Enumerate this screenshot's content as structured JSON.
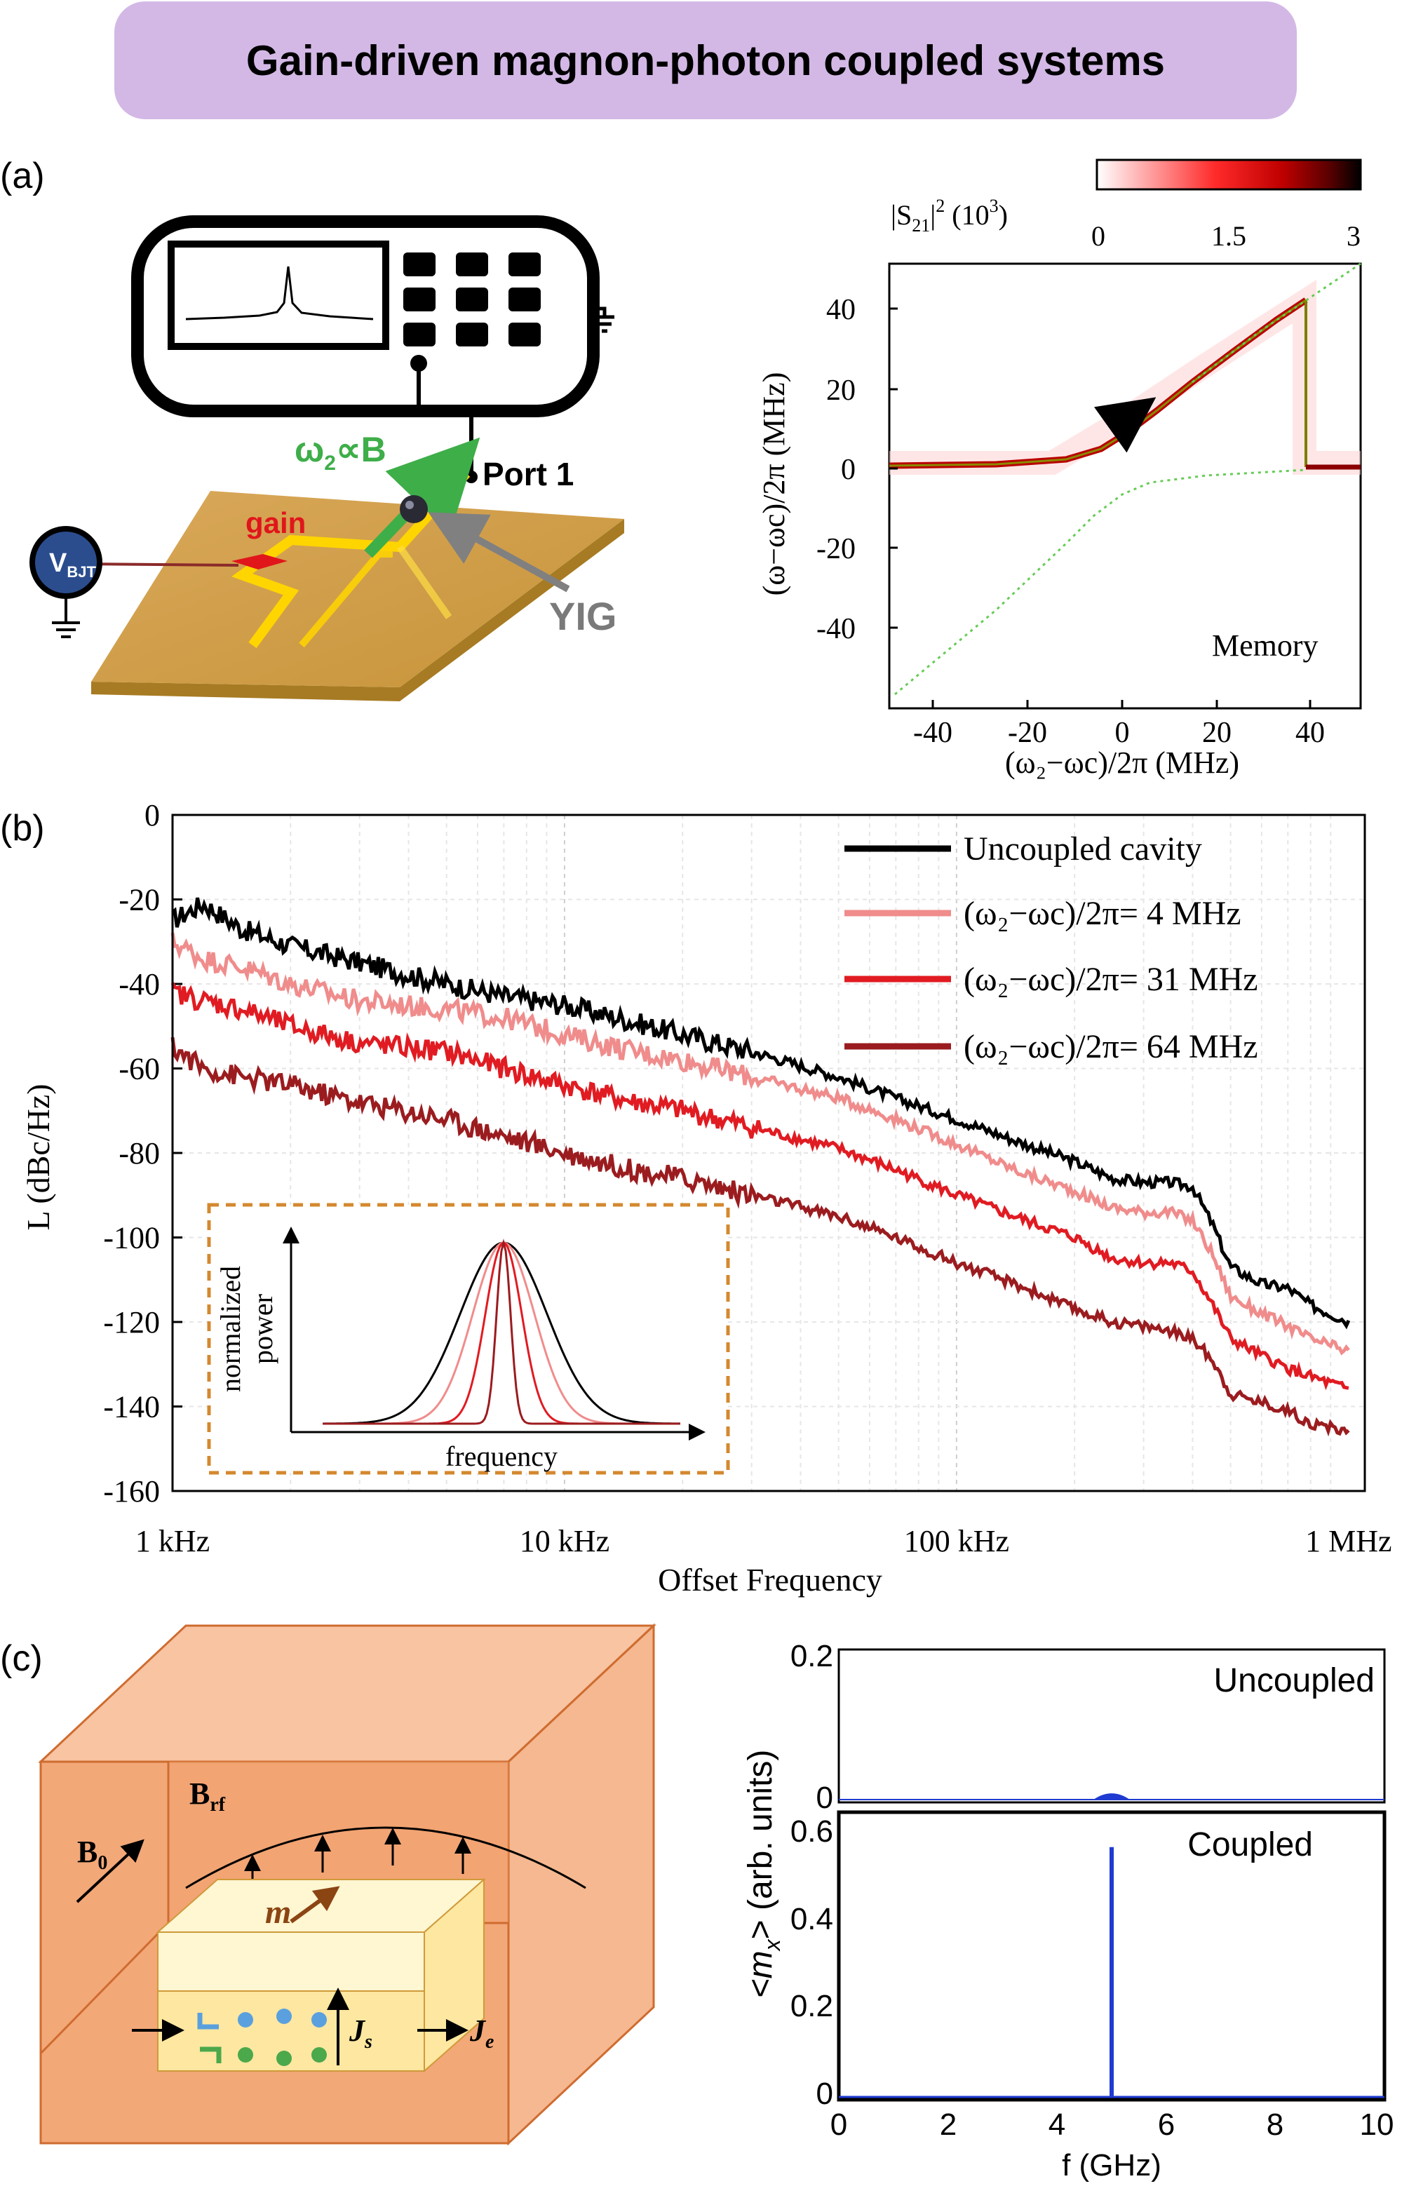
{
  "title": "Gain-driven magnon-photon coupled systems",
  "panel_labels": [
    "(a)",
    "(b)",
    "(c)"
  ],
  "schematic_a": {
    "freq_label": "ω",
    "freq_sub": "2",
    "freq_rel": "∝B",
    "port_label": "Port 1",
    "gain_label": "gain",
    "yig_label": "YIG",
    "vbjt_label": "V",
    "vbjt_sub": "BJT"
  },
  "colors": {
    "banner": "#d3b8e6",
    "gain": "#e0161b",
    "green": "#3eae49",
    "board": "#d8a94a",
    "uncoupled": "#000000",
    "det4": "#f08c8c",
    "det31": "#e11b22",
    "det64": "#9b1c1f",
    "box_wall": "#f3a878",
    "spectrum": "#1f3bd1"
  },
  "heatmap": {
    "colorbar_title": "|S",
    "colorbar_title_sub": "21",
    "colorbar_title_rest": "|",
    "colorbar_title_sup": "2",
    "colorbar_title_unit": " (10",
    "colorbar_title_unit_sup": "3",
    "colorbar_title_close": ")",
    "colorbar_ticks": [
      "0",
      "1.5",
      "3"
    ],
    "xticks": [
      "-40",
      "-20",
      "0",
      "20",
      "40"
    ],
    "yticks": [
      "40",
      "20",
      "0",
      "-20",
      "-40"
    ],
    "xlabel": "(ω₂−ωc)/2π (MHz)",
    "ylabel": "(ω−ωc)/2π (MHz)",
    "annotation": "Memory"
  },
  "chart_data": {
    "type": "line",
    "title": "",
    "xlabel": "Offset Frequency",
    "ylabel": "L (dBc/Hz)",
    "xscale": "log",
    "xlim": [
      1000,
      1100000
    ],
    "ylim": [
      -160,
      0
    ],
    "x_tick_labels": [
      "1 kHz",
      "10 kHz",
      "100 kHz",
      "1 MHz"
    ],
    "y_tick_labels": [
      "0",
      "-20",
      "-40",
      "-60",
      "-80",
      "-100",
      "-120",
      "-140",
      "-160"
    ],
    "legend_position": "top-right",
    "series": [
      {
        "name": "Uncoupled cavity",
        "x": [
          1000,
          1200,
          1500,
          2000,
          3000,
          5000,
          7000,
          10000,
          15000,
          20000,
          30000,
          50000,
          70000,
          100000,
          150000,
          200000,
          250000,
          300000,
          350000,
          400000,
          450000,
          500000,
          600000,
          700000,
          800000,
          1000000
        ],
        "y": [
          -25,
          -21,
          -27,
          -31,
          -35,
          -40,
          -43,
          -45,
          -49,
          -52,
          -56,
          -62,
          -67,
          -72,
          -78,
          -82,
          -86,
          -87,
          -87,
          -88,
          -97,
          -107,
          -111,
          -112,
          -116,
          -120
        ]
      },
      {
        "name": "(ω₂−ωc)/2π= 4 MHz",
        "x": [
          1000,
          1200,
          1500,
          2000,
          3000,
          5000,
          7000,
          10000,
          15000,
          20000,
          30000,
          50000,
          70000,
          100000,
          150000,
          200000,
          250000,
          300000,
          350000,
          400000,
          450000,
          500000,
          600000,
          700000,
          800000,
          1000000
        ],
        "y": [
          -30,
          -34,
          -36,
          -40,
          -44,
          -46,
          -48,
          -52,
          -56,
          -58,
          -62,
          -67,
          -72,
          -78,
          -85,
          -89,
          -93,
          -94,
          -94,
          -96,
          -104,
          -114,
          -118,
          -121,
          -124,
          -127
        ]
      },
      {
        "name": "(ω₂−ωc)/2π= 31 MHz",
        "x": [
          1000,
          1200,
          1500,
          2000,
          3000,
          5000,
          7000,
          10000,
          15000,
          20000,
          30000,
          50000,
          70000,
          100000,
          150000,
          200000,
          250000,
          300000,
          350000,
          400000,
          450000,
          500000,
          600000,
          700000,
          800000,
          1000000
        ],
        "y": [
          -42,
          -44,
          -46,
          -50,
          -54,
          -56,
          -60,
          -64,
          -68,
          -70,
          -74,
          -79,
          -84,
          -90,
          -96,
          -100,
          -105,
          -106,
          -106,
          -108,
          -116,
          -124,
          -128,
          -131,
          -133,
          -136
        ]
      },
      {
        "name": "(ω₂−ωc)/2π= 64 MHz",
        "x": [
          1000,
          1200,
          1500,
          2000,
          3000,
          5000,
          7000,
          10000,
          15000,
          20000,
          30000,
          50000,
          70000,
          100000,
          150000,
          200000,
          250000,
          300000,
          350000,
          400000,
          450000,
          500000,
          600000,
          700000,
          800000,
          1000000
        ],
        "y": [
          -55,
          -60,
          -62,
          -64,
          -68,
          -72,
          -76,
          -80,
          -84,
          -86,
          -90,
          -95,
          -100,
          -106,
          -112,
          -117,
          -120,
          -121,
          -122,
          -124,
          -129,
          -137,
          -139,
          -141,
          -144,
          -146
        ]
      }
    ],
    "inset": {
      "xlabel": "frequency",
      "ylabel_line1": "normalized",
      "ylabel_line2": "power"
    }
  },
  "spectrum": {
    "top_label": "Uncoupled",
    "bottom_label": "Coupled",
    "top_yticks": [
      "0.2",
      "0"
    ],
    "bottom_yticks": [
      "0.6",
      "0.4",
      "0.2",
      "0"
    ],
    "xticks": [
      "0",
      "2",
      "4",
      "6",
      "8",
      "10"
    ],
    "xlabel": "f (GHz)",
    "ylabel": "<m",
    "ylabel_sub": "x",
    "ylabel_rest": "> (arb. units)",
    "coupled_peak": {
      "f_GHz": 5.0,
      "amplitude": 0.57
    },
    "uncoupled_peak": {
      "f_GHz": 5.0,
      "amplitude": 0.008
    }
  },
  "schematic_c": {
    "b0": "B",
    "b0_sub": "0",
    "brf": "B",
    "brf_sub": "rf",
    "m": "m",
    "js": "J",
    "js_sub": "s",
    "je": "J",
    "je_sub": "e"
  }
}
